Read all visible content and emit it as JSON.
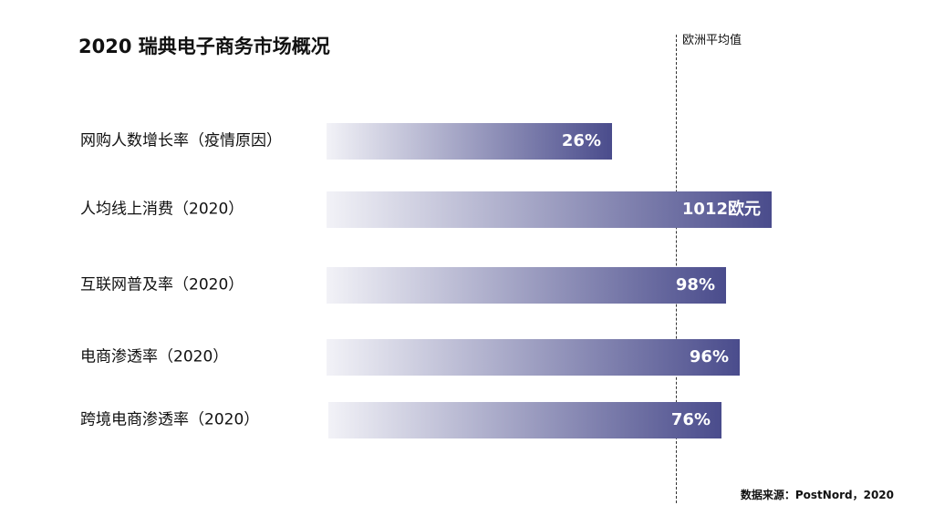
{
  "chart_data": {
    "type": "bar",
    "orientation": "horizontal",
    "title": "2020 瑞典电子商务市场概况",
    "categories": [
      "网购人数增长率（疫情原因）",
      "人均线上消费（2020）",
      "互联网普及率（2020）",
      "电商渗透率（2020）",
      "跨境电商渗透率（2020）"
    ],
    "value_labels": [
      "26%",
      "1012欧元",
      "98%",
      "96%",
      "76%"
    ],
    "reference_line": {
      "label": "欧洲平均值",
      "style": "dashed"
    },
    "legend": "none",
    "grid": false,
    "colors": {
      "bar_gradient_start": "#f2f2f7",
      "bar_gradient_end": "#4a4c8c",
      "value_text": "#ffffff",
      "reference_line": "#333333"
    }
  },
  "footer": {
    "source": "数据来源：PostNord，2020"
  }
}
